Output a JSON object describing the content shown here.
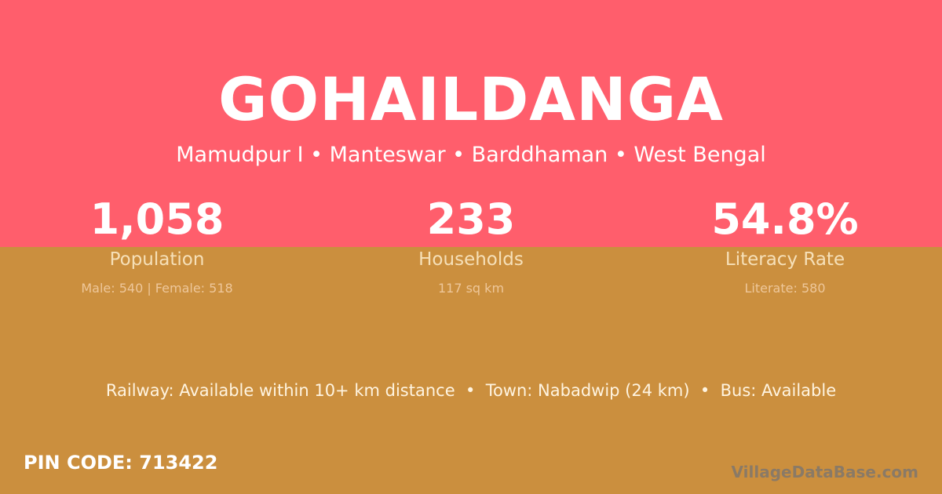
{
  "title": "GOHAILDANGA",
  "location": "Mamudpur I • Manteswar • Barddhaman • West Bengal",
  "stats": [
    {
      "value": "1,058",
      "label": "Population",
      "detail": "Male: 540 | Female: 518"
    },
    {
      "value": "233",
      "label": "Households",
      "detail": "117 sq km"
    },
    {
      "value": "54.8%",
      "label": "Literacy Rate",
      "detail": "Literate: 580"
    }
  ],
  "info": "Railway: Available within 10+ km distance  •  Town: Nabadwip (24 km)  •  Bus: Available",
  "pin": "PIN CODE: 713422",
  "watermark": "VillageDataBase.com",
  "colors": {
    "top": "#ff5e6c",
    "bottom": "#cb8f3e"
  }
}
